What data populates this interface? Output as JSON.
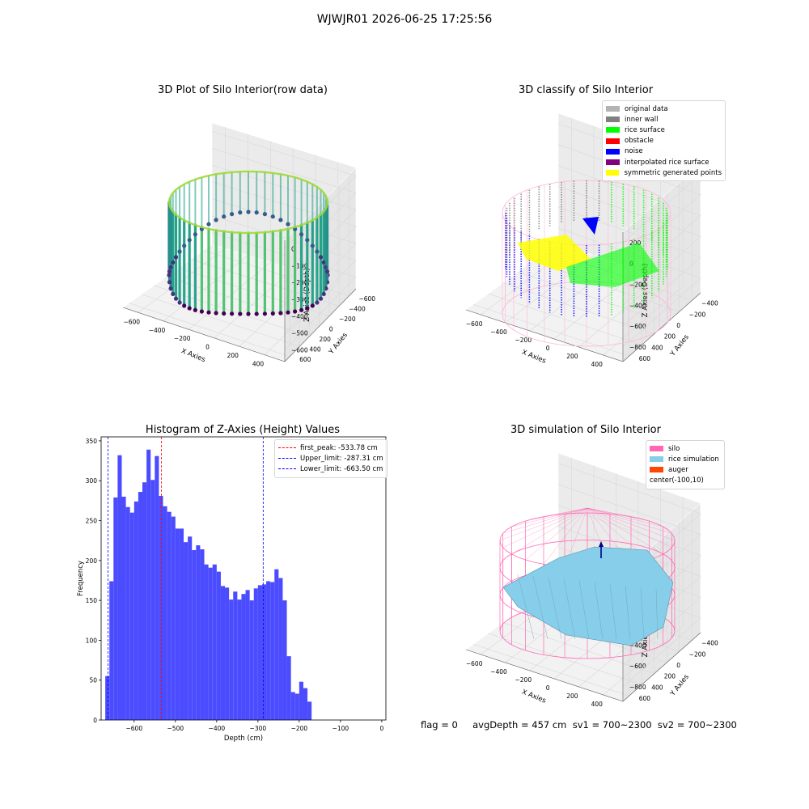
{
  "suptitle": "WJWJR01 2026-06-25 17:25:56",
  "footer": "flag = 0     avgDepth = 457 cm  sv1 = 700~2300  sv2 = 700~2300",
  "chart_data": [
    {
      "type": "scatter",
      "title": "3D Plot of Silo Interior(row data)",
      "xlabel": "X Axies",
      "ylabel": "Y Axies",
      "zlabel": "Z Axies (Depth)",
      "x_ticks": [
        "−600",
        "−400",
        "−200",
        "0",
        "200",
        "400"
      ],
      "y_ticks": [
        "−600",
        "−400",
        "−200",
        "0",
        "200",
        "400",
        "600"
      ],
      "z_ticks": [
        "0",
        "−100",
        "−200",
        "−300",
        "−400",
        "−500",
        "−600"
      ],
      "colormap": "viridis",
      "grid": true
    },
    {
      "type": "scatter",
      "title": "3D classify of Silo Interior",
      "xlabel": "X Axies",
      "ylabel": "Y Axies",
      "zlabel": "Z Axies (Depth)",
      "x_ticks": [
        "−600",
        "−400",
        "−200",
        "0",
        "200",
        "400"
      ],
      "y_ticks": [
        "−400",
        "−200",
        "0",
        "200",
        "400",
        "600"
      ],
      "z_ticks": [
        "200",
        "0",
        "−200",
        "−400",
        "−600",
        "−800"
      ],
      "legend": [
        {
          "name": "original data",
          "color": "#b3b3b3"
        },
        {
          "name": "inner wall",
          "color": "#808080"
        },
        {
          "name": "rice surface",
          "color": "#00ff00"
        },
        {
          "name": "obstacle",
          "color": "#ff0000"
        },
        {
          "name": "noise",
          "color": "#0000ff"
        },
        {
          "name": "interpolated rice surface",
          "color": "#800080"
        },
        {
          "name": "symmetric generated points",
          "color": "#ffff00"
        }
      ],
      "legend_position": "top-right",
      "grid": true
    },
    {
      "type": "bar",
      "title": "Histogram of Z-Axies (Height) Values",
      "xlabel": "Depth (cm)",
      "ylabel": "Frequency",
      "bin_width": 10,
      "bin_start": -670,
      "values": [
        55,
        174,
        279,
        332,
        280,
        267,
        260,
        274,
        286,
        298,
        339,
        301,
        331,
        281,
        268,
        261,
        255,
        240,
        240,
        223,
        230,
        213,
        219,
        214,
        195,
        191,
        195,
        186,
        168,
        166,
        151,
        161,
        151,
        158,
        163,
        150,
        165,
        169,
        170,
        174,
        173,
        189,
        178,
        150,
        80,
        35,
        33,
        48,
        40,
        23
      ],
      "xlim": [
        -680,
        10
      ],
      "ylim": [
        0,
        355
      ],
      "x_ticks": [
        -600,
        -500,
        -400,
        -300,
        -200,
        -100,
        0
      ],
      "y_ticks": [
        0,
        50,
        100,
        150,
        200,
        250,
        300,
        350
      ],
      "bar_color": "#4c4cff",
      "vlines": [
        {
          "name": "first_peak: -533.78 cm",
          "x": -533.78,
          "color": "#ff0000"
        },
        {
          "name": "Upper_limit: -287.31 cm",
          "x": -287.31,
          "color": "#0000ff"
        },
        {
          "name": "Lower_limit: -663.50 cm",
          "x": -663.5,
          "color": "#0000ff"
        }
      ],
      "legend_position": "top-right"
    },
    {
      "type": "scatter",
      "title": "3D simulation of Silo Interior",
      "xlabel": "X Axies",
      "ylabel": "Y Axies",
      "zlabel": "Z Axies (Depth)",
      "x_ticks": [
        "−600",
        "−400",
        "−200",
        "0",
        "200",
        "400"
      ],
      "y_ticks": [
        "−400",
        "−200",
        "0",
        "200",
        "400",
        "600"
      ],
      "z_ticks": [
        "200",
        "0",
        "−200",
        "−400",
        "−600",
        "−800"
      ],
      "legend": [
        {
          "name": "silo",
          "color": "#ff69b4"
        },
        {
          "name": "rice simulation",
          "color": "#87ceeb"
        },
        {
          "name": "auger",
          "color": "#ff4500"
        },
        {
          "name": "center(-100,10)",
          "color": ""
        }
      ],
      "legend_position": "top-right",
      "grid": true
    }
  ]
}
